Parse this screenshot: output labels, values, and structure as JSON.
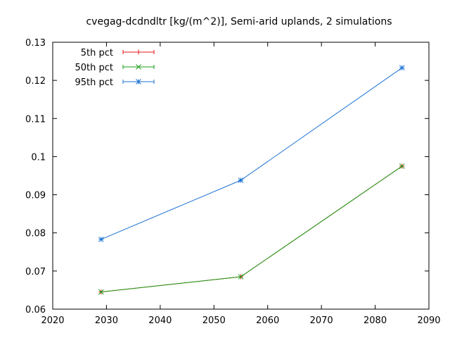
{
  "chart_data": {
    "type": "line",
    "title": "cvegag-dcdndltr [kg/(m^2)], Semi-arid uplands, 2 simulations",
    "xlabel": "",
    "ylabel": "",
    "xlim": [
      2020,
      2090
    ],
    "ylim": [
      0.06,
      0.13
    ],
    "xticks": [
      2020,
      2030,
      2040,
      2050,
      2060,
      2070,
      2080,
      2090
    ],
    "xtick_labels": [
      "2020",
      "2030",
      "2040",
      "2050",
      "2060",
      "2070",
      "2080",
      "2090"
    ],
    "yticks": [
      0.06,
      0.07,
      0.08,
      0.09,
      0.1,
      0.11,
      0.12,
      0.13
    ],
    "ytick_labels": [
      "0.06",
      "0.07",
      "0.08",
      "0.09",
      "0.1",
      "0.11",
      "0.12",
      "0.13"
    ],
    "grid": false,
    "legend_position": "top-left",
    "x": [
      2029,
      2055,
      2085
    ],
    "series": [
      {
        "name": "5th pct",
        "values": [
          0.0645,
          0.0685,
          0.0975
        ],
        "color": "#e41a1c",
        "marker": "plus"
      },
      {
        "name": "50th pct",
        "values": [
          0.0645,
          0.0685,
          0.0975
        ],
        "color": "#1a9f1a",
        "marker": "cross"
      },
      {
        "name": "95th pct",
        "values": [
          0.0783,
          0.0938,
          0.1233
        ],
        "color": "#1a72d4",
        "marker": "star"
      }
    ]
  }
}
